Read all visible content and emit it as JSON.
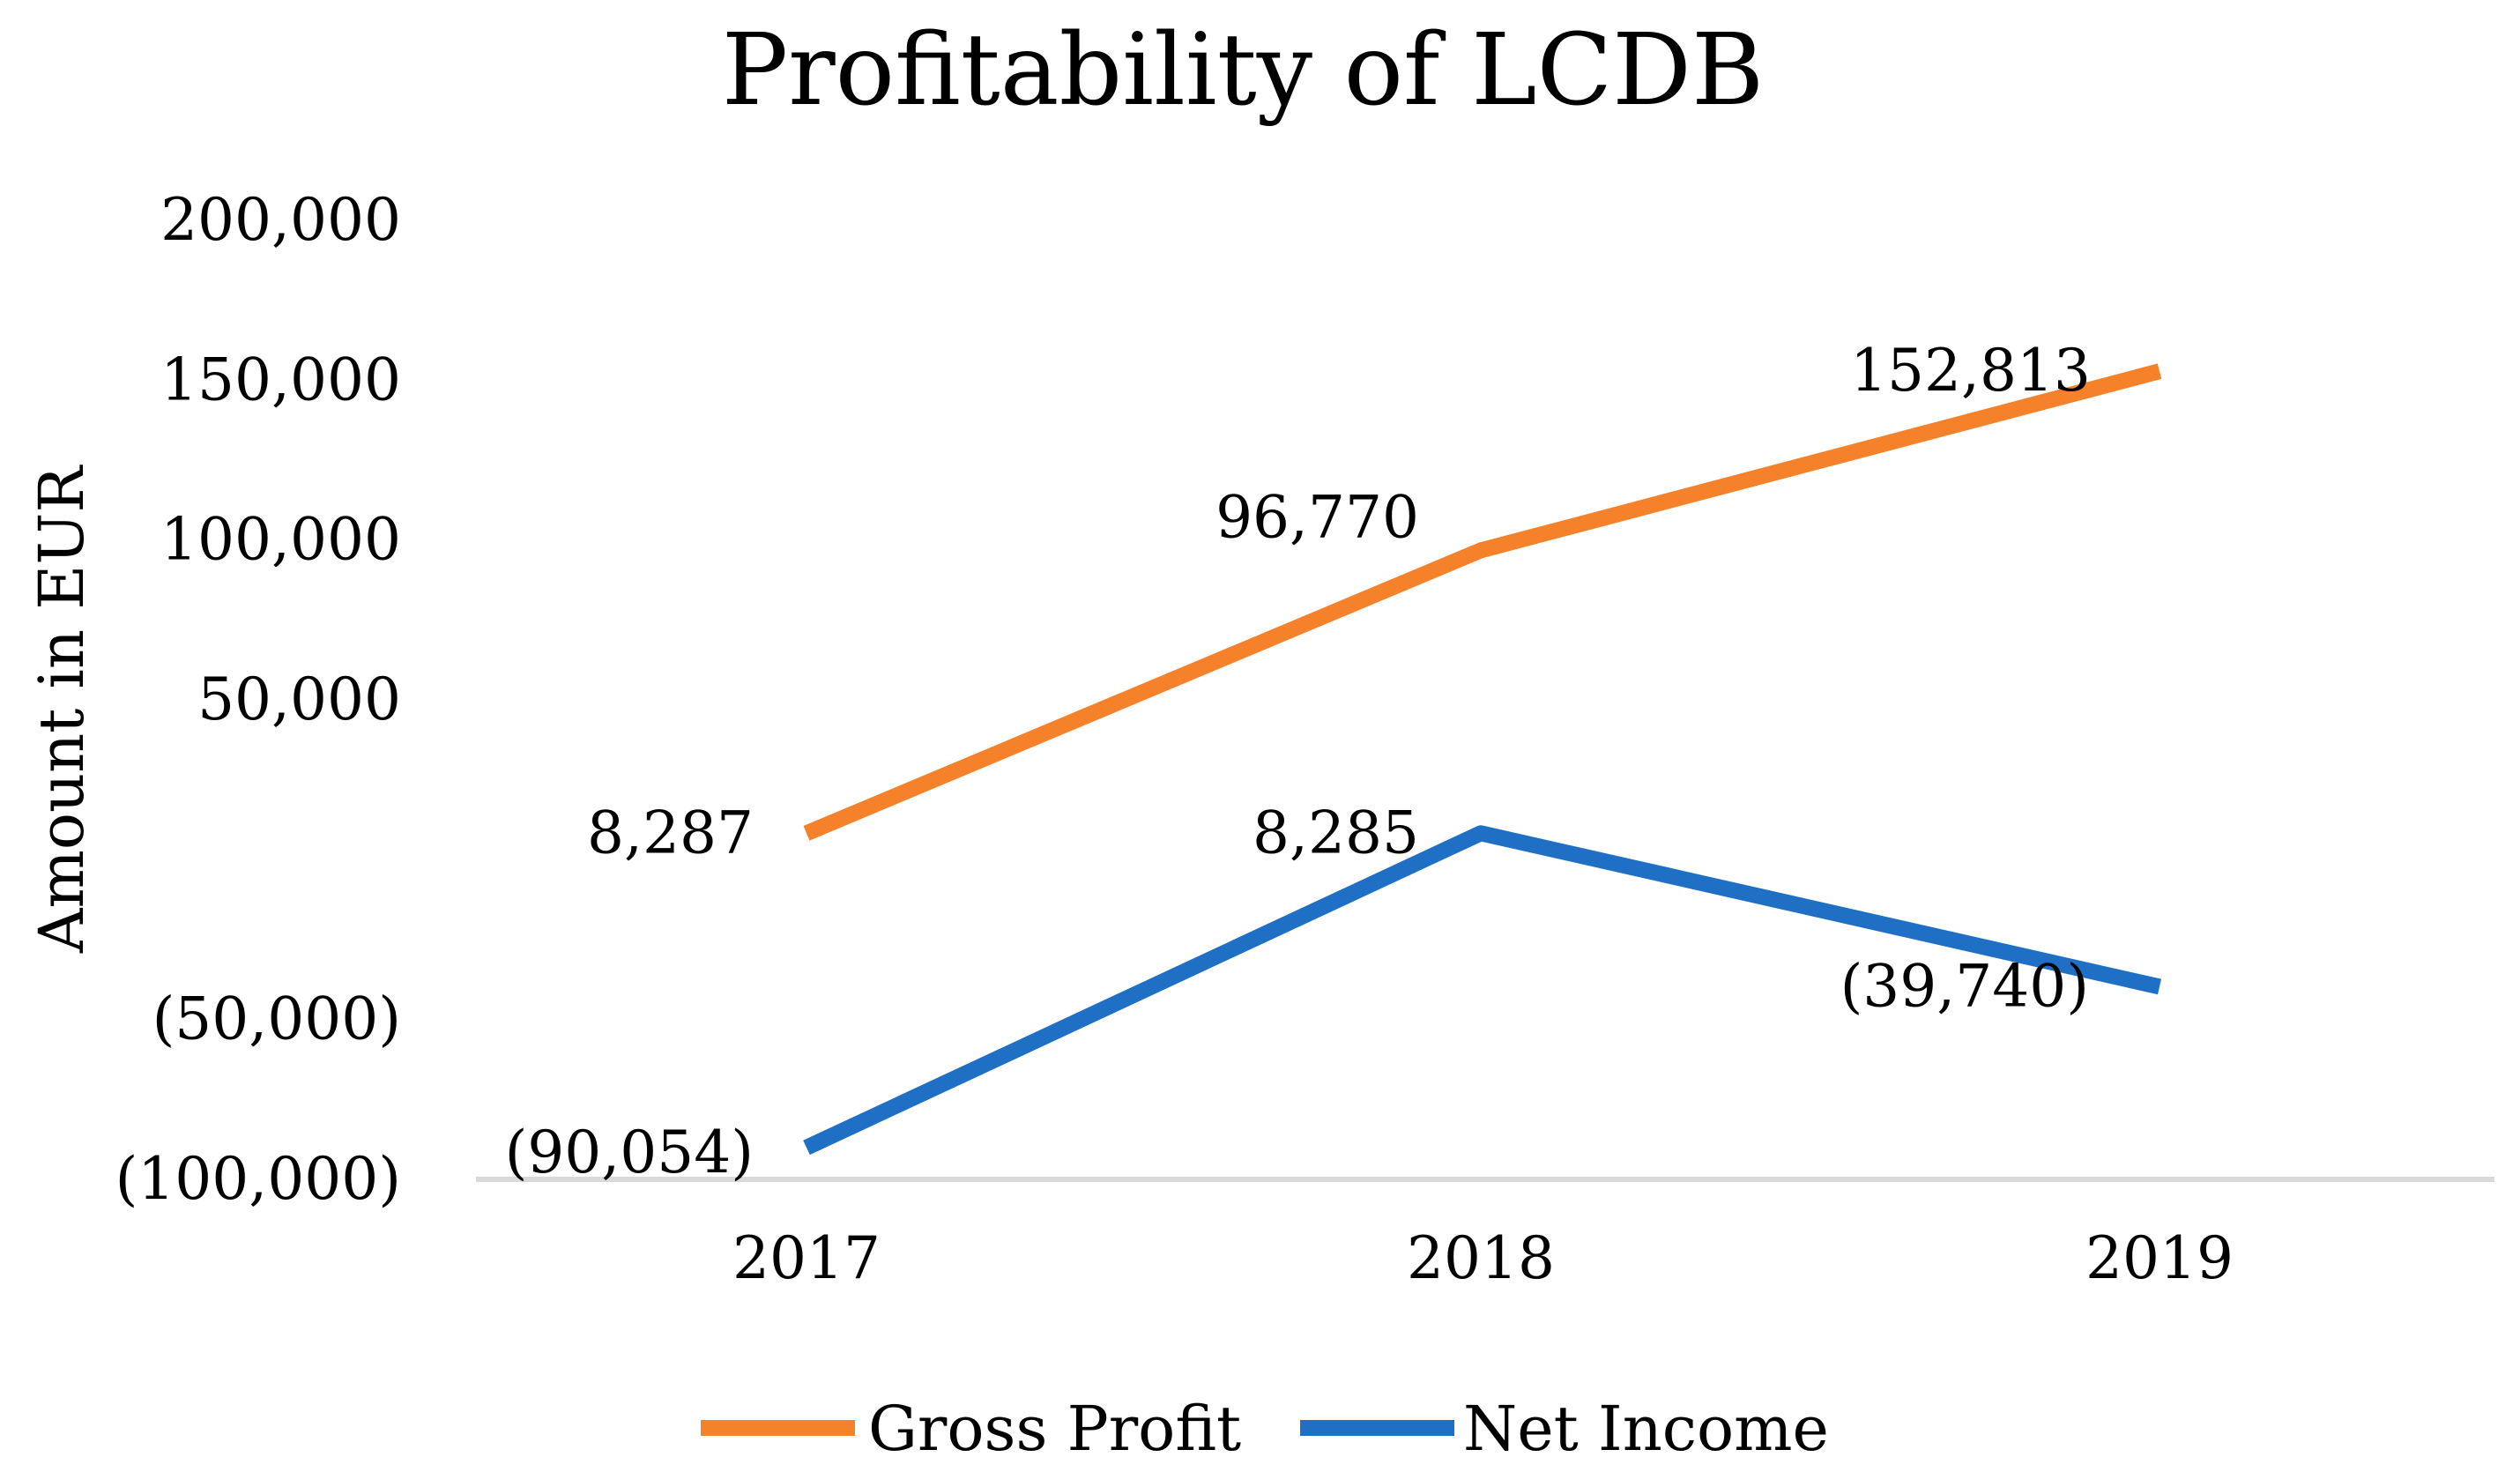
{
  "chart_data": {
    "type": "line",
    "title": "Profitability of LCDB",
    "xlabel": "",
    "ylabel": "Amount in EUR",
    "categories": [
      "2017",
      "2018",
      "2019"
    ],
    "ylim": [
      -100000,
      200000
    ],
    "y_ticks": [
      {
        "value": 200000,
        "label": "200,000"
      },
      {
        "value": 150000,
        "label": "150,000"
      },
      {
        "value": 100000,
        "label": "100,000"
      },
      {
        "value": 50000,
        "label": "50,000"
      },
      {
        "value": -50000,
        "label": "(50,000)"
      },
      {
        "value": -100000,
        "label": "(100,000)"
      }
    ],
    "grid": false,
    "legend_position": "bottom",
    "series": [
      {
        "name": "Gross Profit",
        "color": "#F5822A",
        "values": [
          8287,
          96770,
          152813
        ],
        "labels": [
          "8,287",
          "96,770",
          "152,813"
        ]
      },
      {
        "name": "Net Income",
        "color": "#1F6FC5",
        "values": [
          -90054,
          8285,
          -39740
        ],
        "labels": [
          "(90,054)",
          "8,285",
          "(39,740)"
        ]
      }
    ],
    "axis_color": "#D9D9D9"
  }
}
